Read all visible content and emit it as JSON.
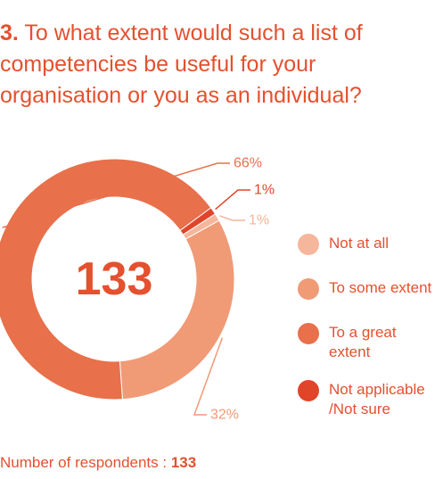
{
  "chart_data": {
    "type": "donut",
    "title_number": "3.",
    "title": "To what extent would such a list of competencies be useful for your organisation or you as an individual?",
    "center_label": "133",
    "footer_label": "Number of respondents :",
    "footer_value": "133",
    "series": [
      {
        "name": "Not at all",
        "color": "#f5b69b",
        "values": [
          1
        ],
        "value_labels": [
          "1%"
        ]
      },
      {
        "name": "To some extent",
        "color": "#f09a76",
        "values": [
          32
        ],
        "value_labels": [
          "32%"
        ]
      },
      {
        "name": "To a great extent",
        "color": "#e8704b",
        "values": [
          66
        ],
        "value_labels": [
          "66%"
        ]
      },
      {
        "name": "Not applicable /Not sure",
        "color": "#e0452a",
        "values": [
          1
        ],
        "value_labels": [
          "1%"
        ]
      }
    ]
  }
}
